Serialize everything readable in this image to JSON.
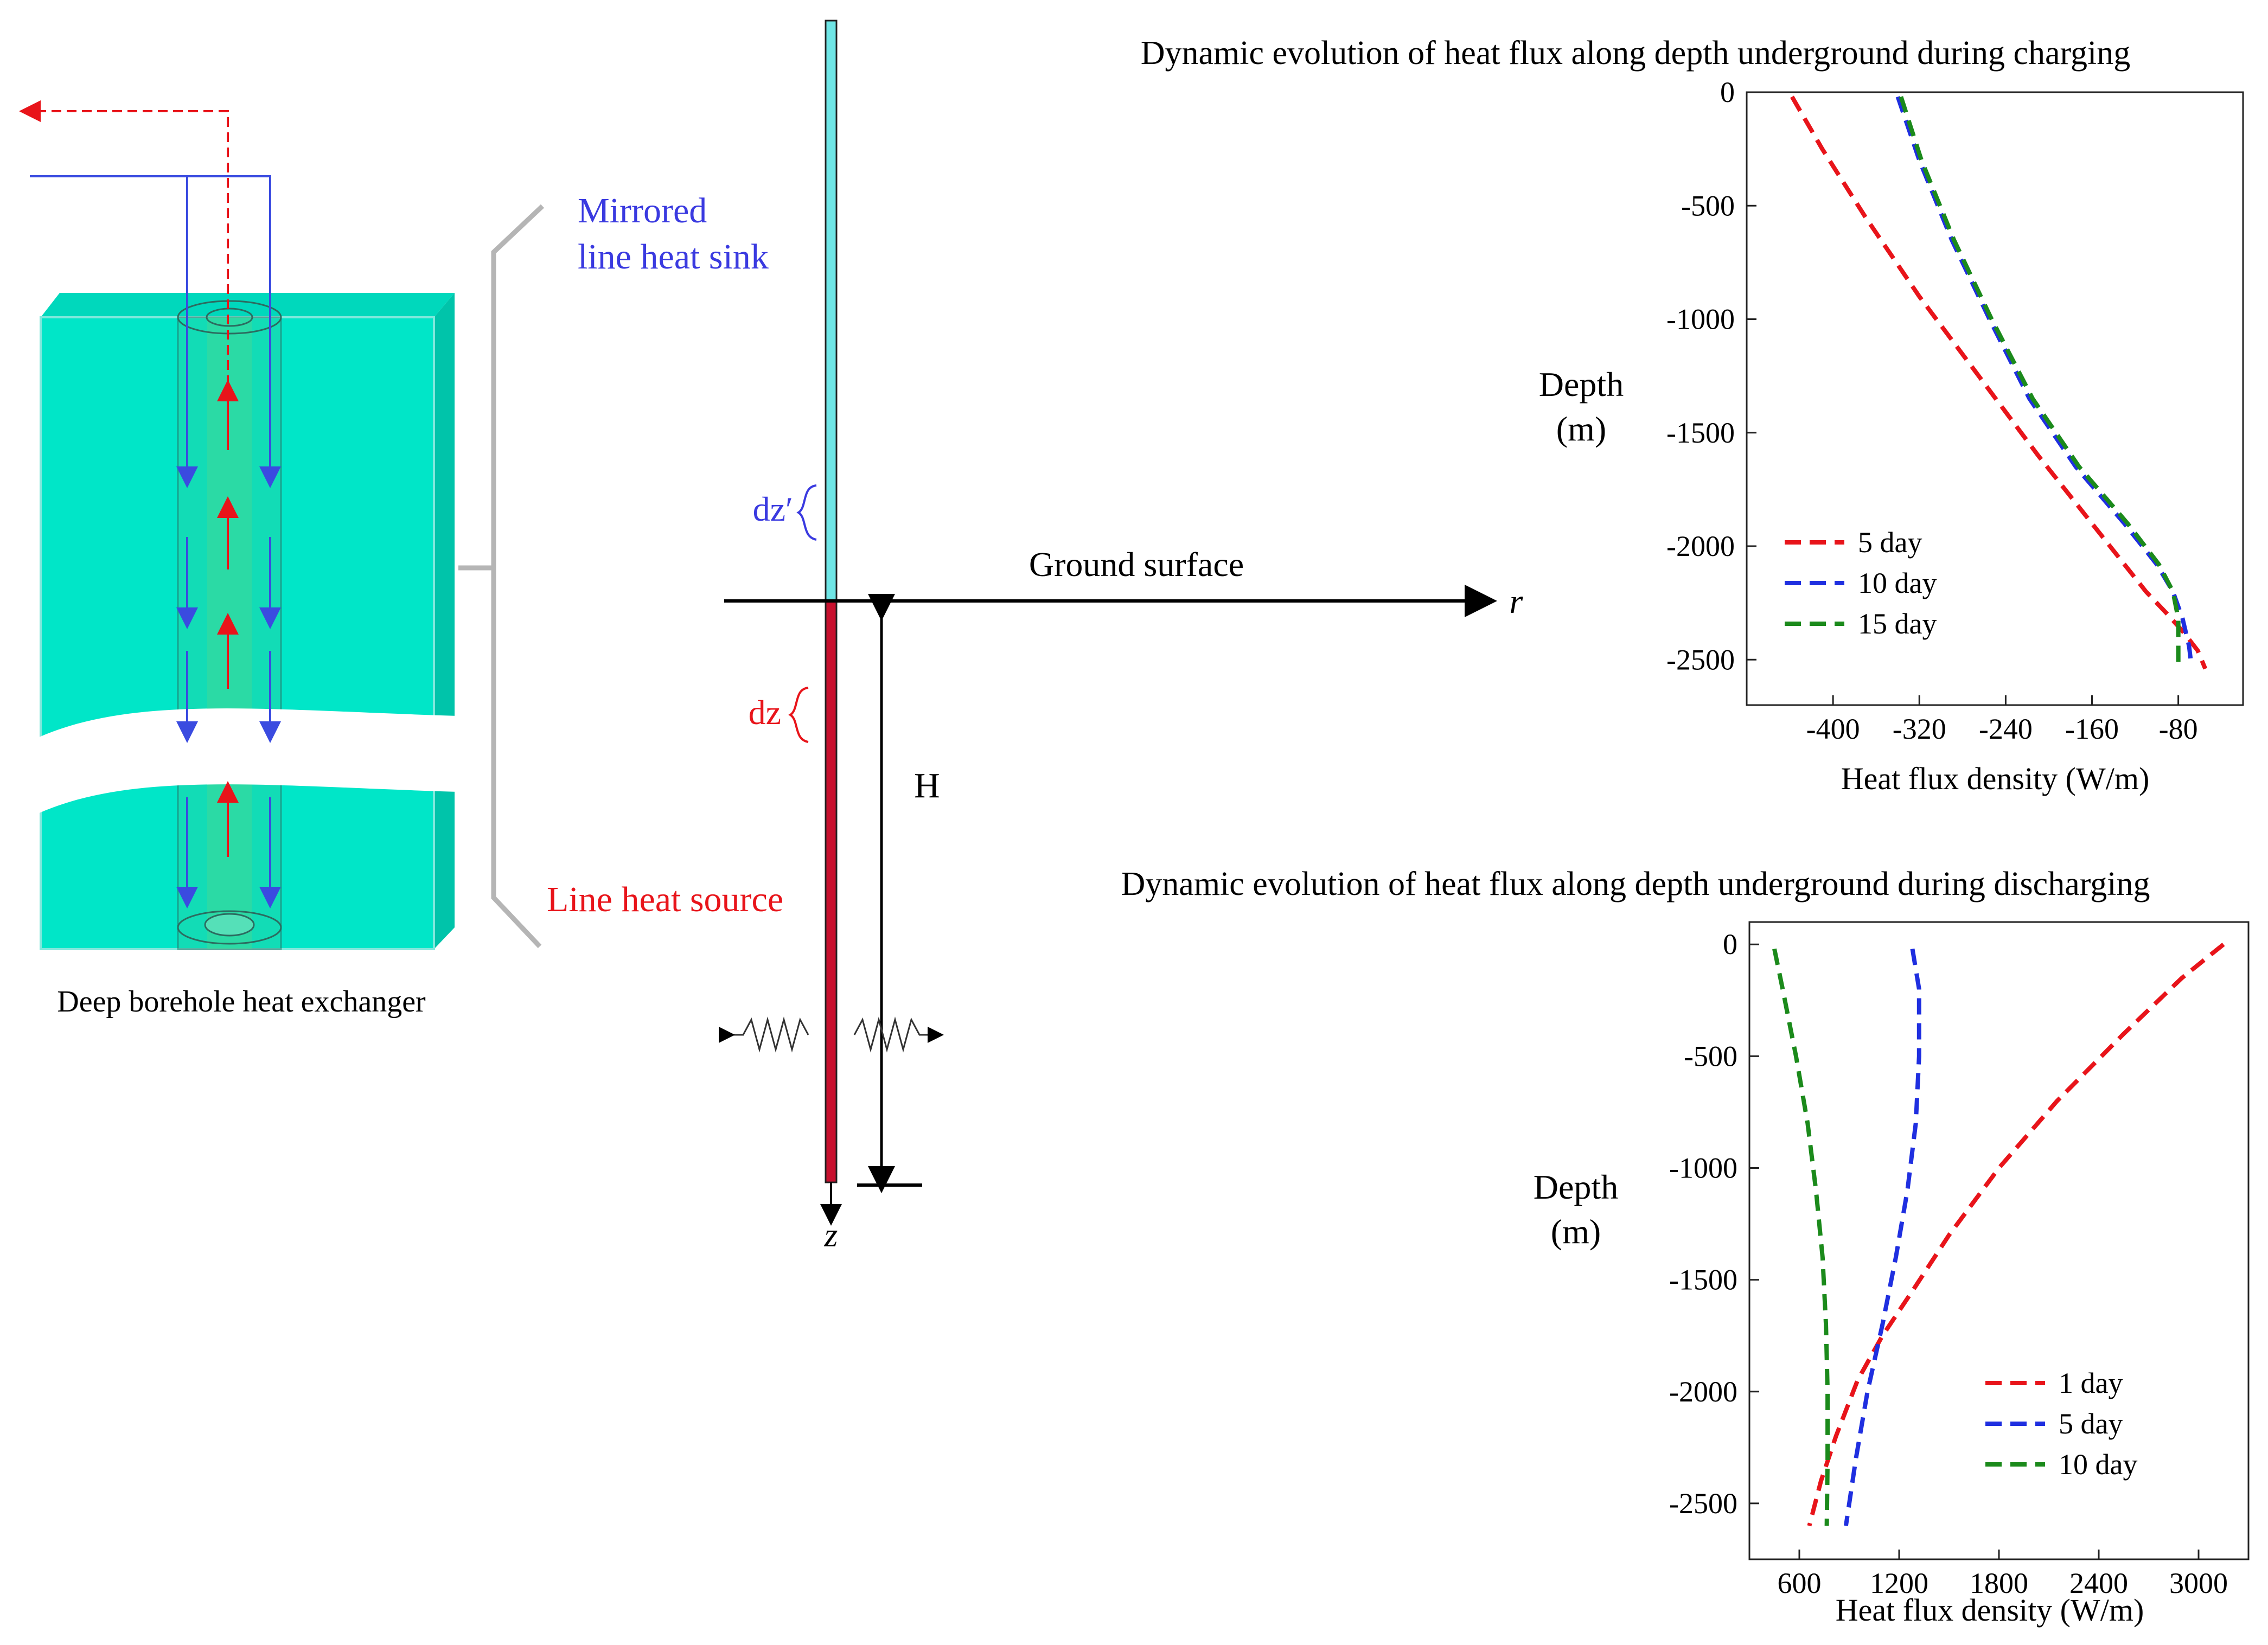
{
  "borehole": {
    "caption": "Deep borehole heat exchanger",
    "colors": {
      "block": "#00e6c8",
      "block_edge": "#00c4aa",
      "flow_down": "#3a4be0",
      "flow_up": "#e8141a"
    }
  },
  "line_model": {
    "mirror_label_line1": "Mirrored",
    "mirror_label_line2": "line heat sink",
    "mirror_element": "dz′",
    "source_label": "Line heat source",
    "source_element": "dz",
    "ground_label": "Ground surface",
    "r_axis": "r",
    "z_axis": "z",
    "depth_label": "H",
    "colors": {
      "sink": "#6fe6e6",
      "source": "#c8102e",
      "sink_text": "#3a3ae0",
      "source_text": "#e8141a"
    }
  },
  "chart_data": [
    {
      "type": "line",
      "title": "Dynamic evolution of heat flux along depth underground during charging",
      "xlabel": "Heat flux density (W/m)",
      "ylabel_line1": "Depth",
      "ylabel_line2": "(m)",
      "xlim": [
        -480,
        -20
      ],
      "ylim": [
        -2700,
        0
      ],
      "x_ticks": [
        "-400",
        "-320",
        "-240",
        "-160",
        "-80"
      ],
      "x_tick_values": [
        -400,
        -320,
        -240,
        -160,
        -80
      ],
      "y_ticks": [
        "0",
        "-500",
        "-1000",
        "-1500",
        "-2000",
        "-2500"
      ],
      "y_tick_values": [
        0,
        -500,
        -1000,
        -1500,
        -2000,
        -2500
      ],
      "legend_position": "bottom-left",
      "series": [
        {
          "name": "5 day",
          "color": "#e8141a",
          "points": [
            [
              -438,
              -20
            ],
            [
              -410,
              -250
            ],
            [
              -370,
              -550
            ],
            [
              -320,
              -900
            ],
            [
              -265,
              -1250
            ],
            [
              -210,
              -1600
            ],
            [
              -160,
              -1900
            ],
            [
              -110,
              -2200
            ],
            [
              -90,
              -2300
            ],
            [
              -75,
              -2380
            ],
            [
              -62,
              -2460
            ],
            [
              -55,
              -2540
            ]
          ]
        },
        {
          "name": "10 day",
          "color": "#1f2fe0",
          "points": [
            [
              -340,
              -20
            ],
            [
              -320,
              -300
            ],
            [
              -290,
              -650
            ],
            [
              -255,
              -1000
            ],
            [
              -218,
              -1350
            ],
            [
              -175,
              -1650
            ],
            [
              -130,
              -1900
            ],
            [
              -100,
              -2080
            ],
            [
              -85,
              -2200
            ],
            [
              -76,
              -2320
            ],
            [
              -70,
              -2440
            ],
            [
              -68,
              -2520
            ]
          ]
        },
        {
          "name": "15 day",
          "color": "#1b8a1b",
          "points": [
            [
              -337,
              -20
            ],
            [
              -318,
              -300
            ],
            [
              -288,
              -650
            ],
            [
              -253,
              -1000
            ],
            [
              -215,
              -1350
            ],
            [
              -172,
              -1650
            ],
            [
              -127,
              -1900
            ],
            [
              -98,
              -2080
            ],
            [
              -85,
              -2200
            ],
            [
              -80,
              -2320
            ],
            [
              -80,
              -2440
            ],
            [
              -80,
              -2530
            ]
          ]
        }
      ]
    },
    {
      "type": "line",
      "title": "Dynamic evolution of heat flux along depth underground during discharging",
      "xlabel": "Heat flux density (W/m)",
      "ylabel_line1": "Depth",
      "ylabel_line2": "(m)",
      "xlim": [
        300,
        3300
      ],
      "ylim": [
        -2750,
        100
      ],
      "x_ticks": [
        "600",
        "1200",
        "1800",
        "2400",
        "3000"
      ],
      "x_tick_values": [
        600,
        1200,
        1800,
        2400,
        3000
      ],
      "y_ticks": [
        "0",
        "-500",
        "-1000",
        "-1500",
        "-2000",
        "-2500"
      ],
      "y_tick_values": [
        0,
        -500,
        -1000,
        -1500,
        -2000,
        -2500
      ],
      "legend_position": "bottom-right",
      "series": [
        {
          "name": "1 day",
          "color": "#e8141a",
          "points": [
            [
              3150,
              0
            ],
            [
              2900,
              -150
            ],
            [
              2550,
              -400
            ],
            [
              2150,
              -700
            ],
            [
              1800,
              -1000
            ],
            [
              1500,
              -1300
            ],
            [
              1280,
              -1550
            ],
            [
              1100,
              -1750
            ],
            [
              950,
              -1950
            ],
            [
              820,
              -2200
            ],
            [
              730,
              -2400
            ],
            [
              660,
              -2600
            ]
          ]
        },
        {
          "name": "5 day",
          "color": "#1f2fe0",
          "points": [
            [
              1280,
              -20
            ],
            [
              1320,
              -200
            ],
            [
              1320,
              -500
            ],
            [
              1300,
              -800
            ],
            [
              1250,
              -1100
            ],
            [
              1180,
              -1400
            ],
            [
              1100,
              -1700
            ],
            [
              1010,
              -2000
            ],
            [
              940,
              -2300
            ],
            [
              880,
              -2600
            ]
          ]
        },
        {
          "name": "10 day",
          "color": "#1b8a1b",
          "points": [
            [
              450,
              -20
            ],
            [
              500,
              -200
            ],
            [
              580,
              -500
            ],
            [
              650,
              -800
            ],
            [
              700,
              -1100
            ],
            [
              740,
              -1400
            ],
            [
              760,
              -1700
            ],
            [
              770,
              -2000
            ],
            [
              770,
              -2300
            ],
            [
              765,
              -2600
            ]
          ]
        }
      ]
    }
  ]
}
